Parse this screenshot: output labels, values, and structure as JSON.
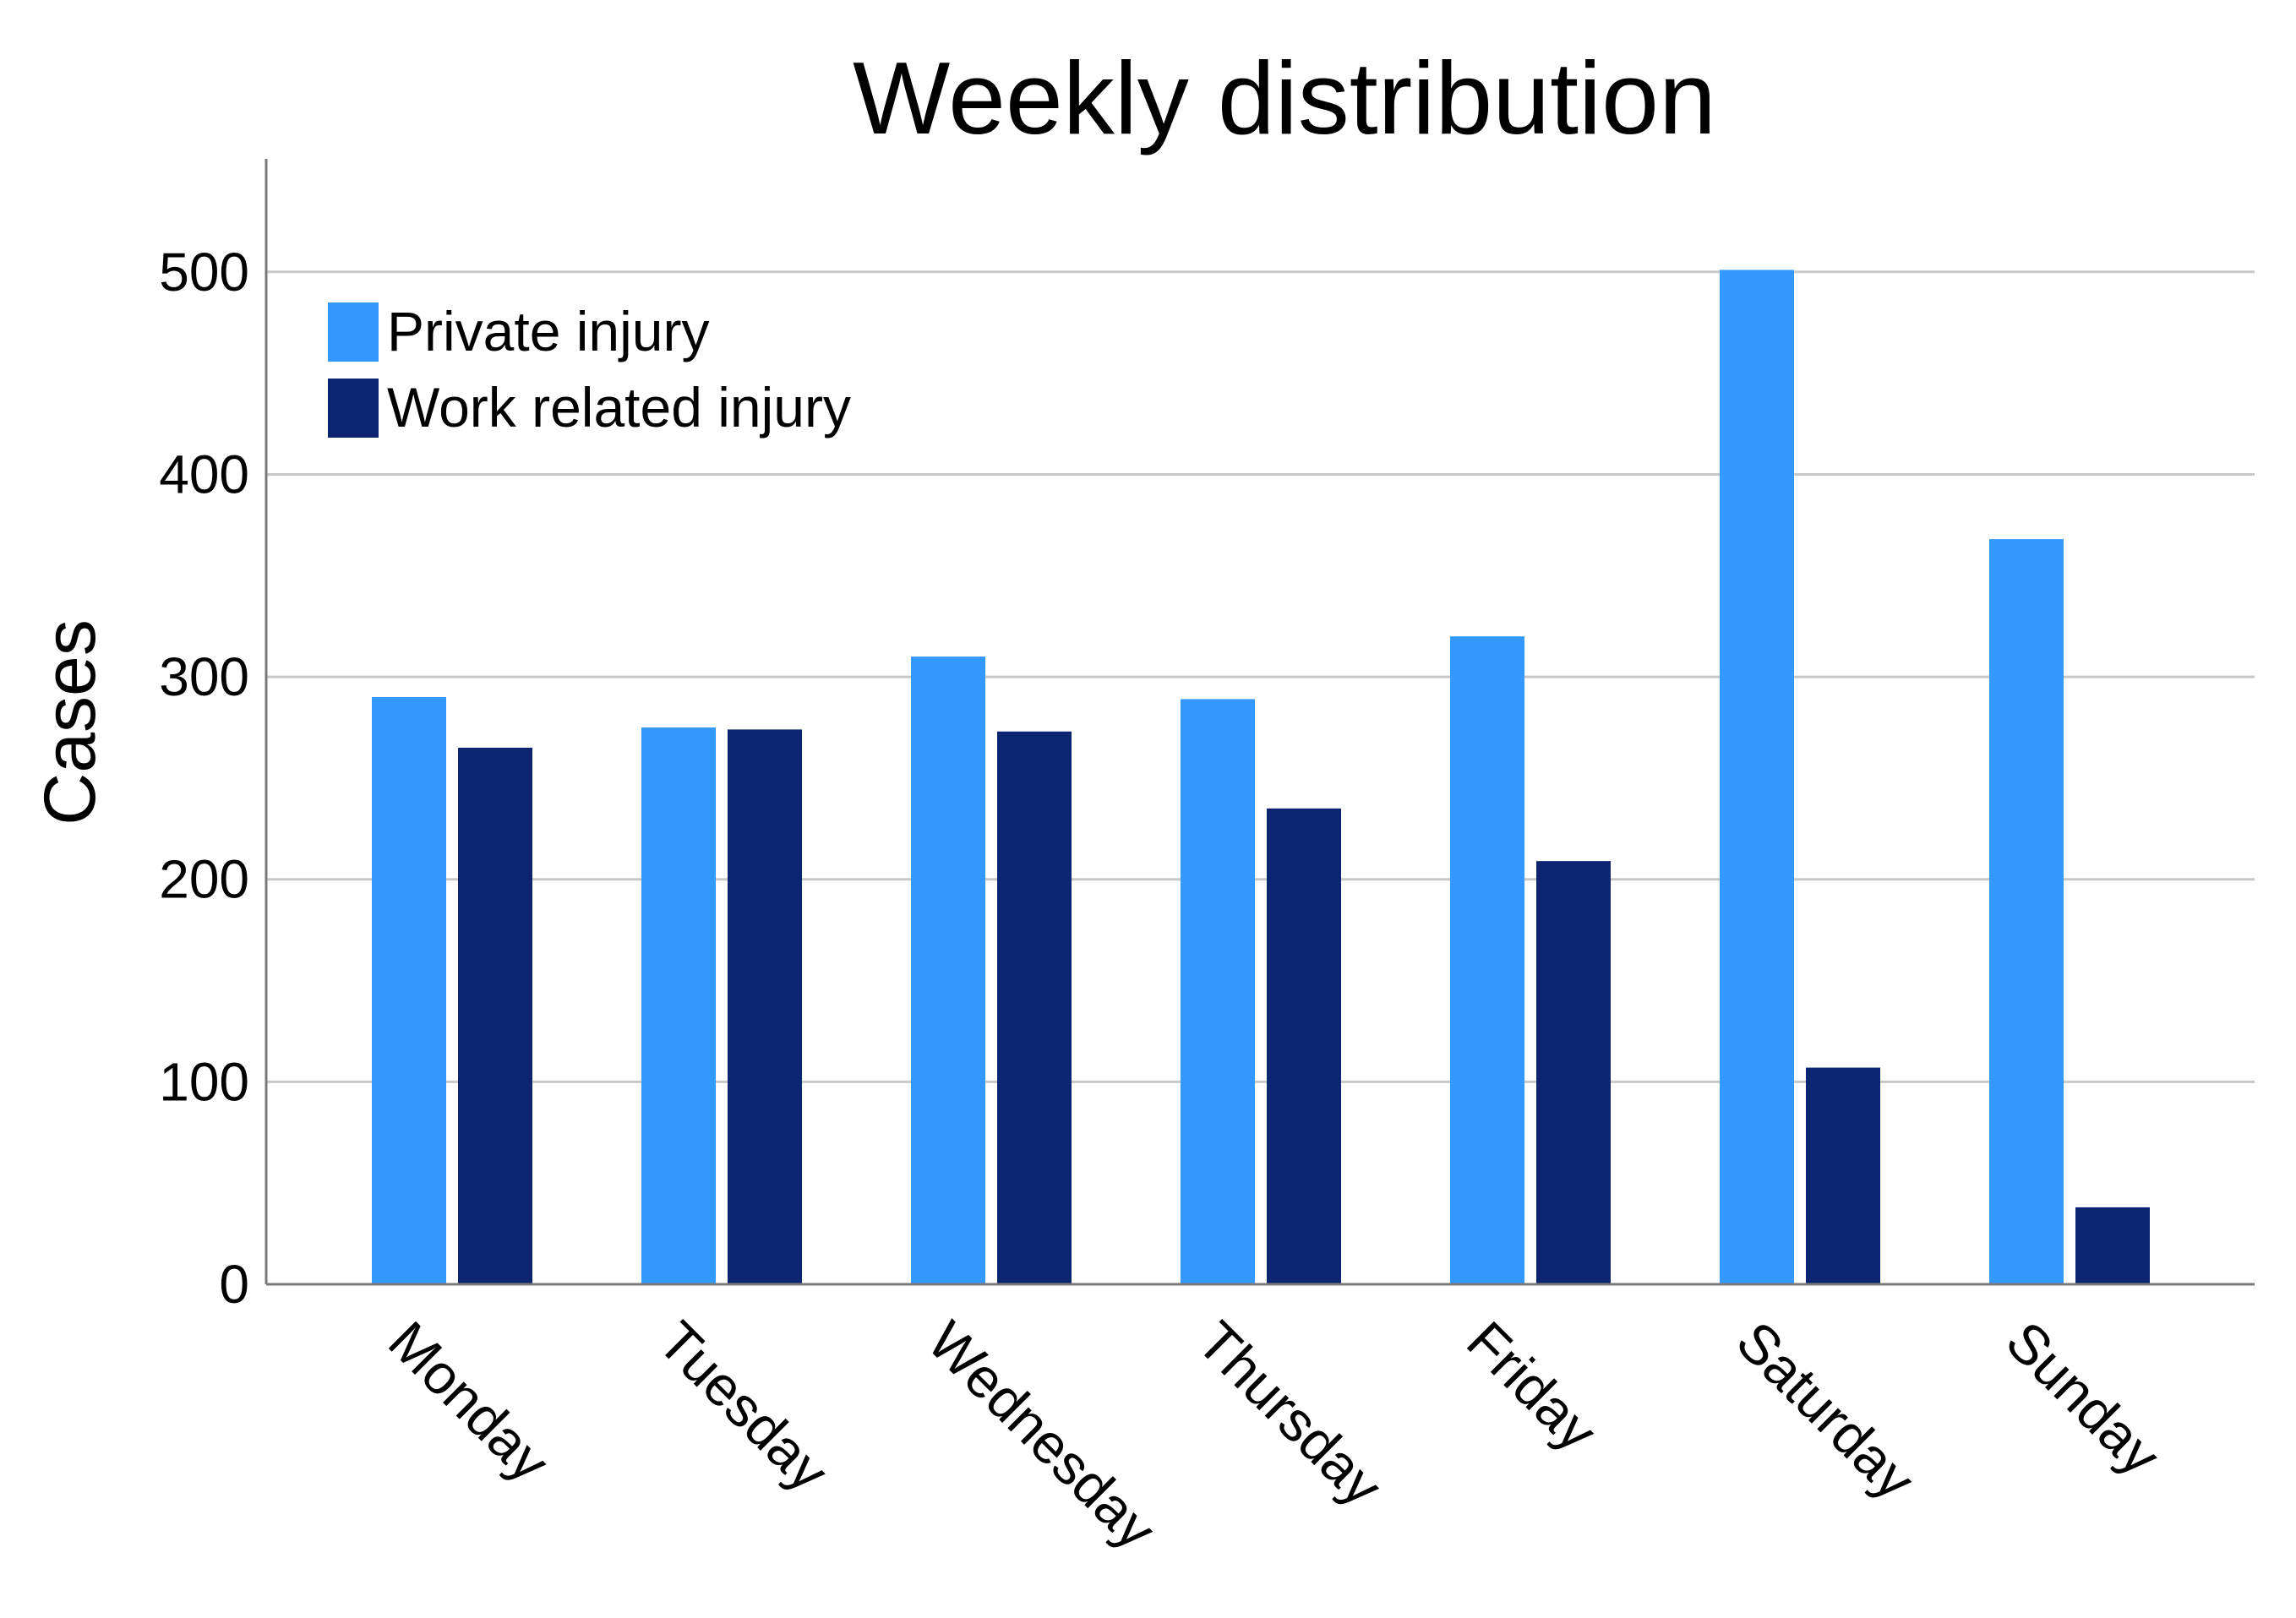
{
  "chart_data": {
    "type": "bar",
    "title": "Weekly distribution",
    "xlabel": "",
    "ylabel": "Cases",
    "ylim": [
      0,
      555
    ],
    "yticks": [
      0,
      100,
      200,
      300,
      400,
      500
    ],
    "grid": true,
    "legend_position": "top-left",
    "categories": [
      "Monday",
      "Tuesday",
      "Wednesday",
      "Thursday",
      "Friday",
      "Saturday",
      "Sunday"
    ],
    "series": [
      {
        "name": "Private injury",
        "color": "#3399ff",
        "values": [
          290,
          275,
          310,
          289,
          320,
          501,
          368
        ]
      },
      {
        "name": "Work related injury",
        "color": "#0b2570",
        "values": [
          265,
          274,
          273,
          235,
          209,
          107,
          38
        ]
      }
    ]
  }
}
